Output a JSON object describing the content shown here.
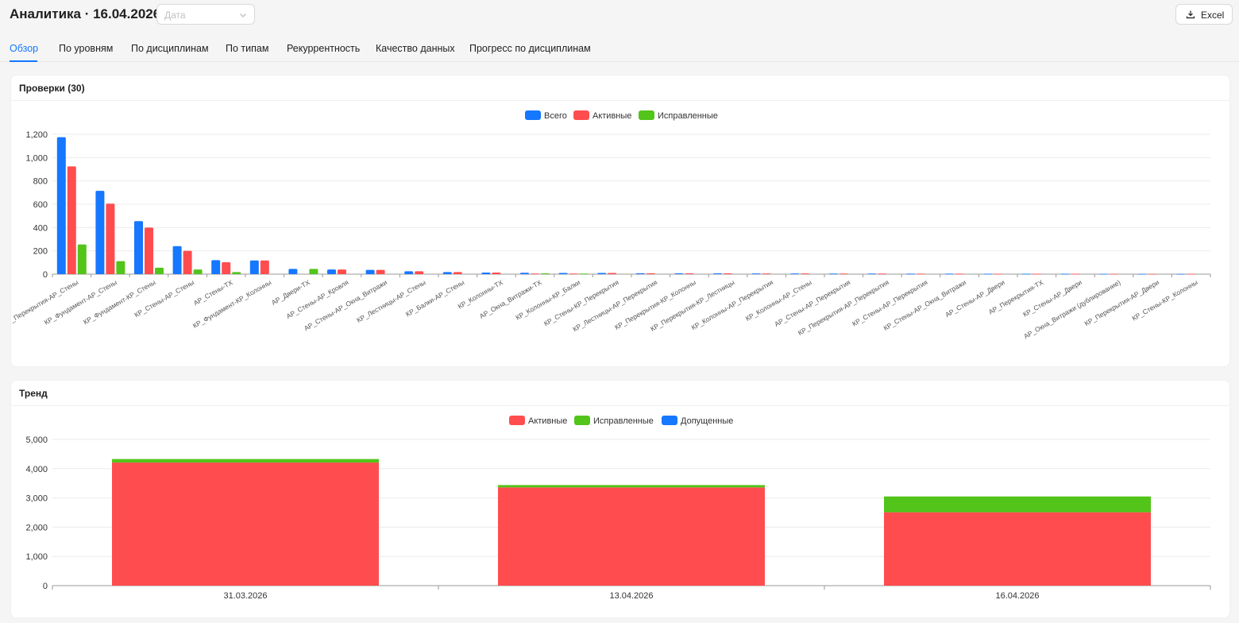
{
  "header": {
    "title": "Аналитика · 16.04.2026",
    "date_placeholder": "Дата",
    "excel_label": "Excel"
  },
  "tabs": [
    {
      "label": "Обзор",
      "active": true
    },
    {
      "label": "По уровням"
    },
    {
      "label": "По дисциплинам"
    },
    {
      "label": "По типам"
    },
    {
      "label": "Рекуррентность"
    },
    {
      "label": "Качество данных"
    },
    {
      "label": "Прогресс по дисциплинам"
    }
  ],
  "colors": {
    "blue": "#1677ff",
    "red": "#ff4d4f",
    "green": "#52c41a"
  },
  "checks_card": {
    "title": "Проверки (30)"
  },
  "trend_card": {
    "title": "Тренд"
  },
  "chart_data": [
    {
      "type": "bar",
      "title": "",
      "legend_position": "top-center",
      "grid": true,
      "ylim": [
        0,
        1200
      ],
      "yticks": [
        0,
        200,
        400,
        600,
        800,
        1000,
        1200
      ],
      "ytick_labels": [
        "0",
        "200",
        "400",
        "600",
        "800",
        "1,000",
        "1,200"
      ],
      "categories": [
        "КР_Перекрытия-АР_Стены",
        "КР_Фундамент-АР_Стены",
        "КР_Фундамент-КР_Стены",
        "КР_Стены-АР_Стены",
        "АР_Стены-ТХ",
        "КР_Фундамент-КР_Колонны",
        "АР_Двери-ТХ",
        "АР_Стены-АР_Кровля",
        "АР_Стены-АР_Окна_Витражи",
        "КР_Лестницы-АР_Стены",
        "КР_Балки-АР_Стены",
        "КР_Колонны-ТХ",
        "АР_Окна_Витражи-ТХ",
        "КР_Колонны-КР_Балки",
        "КР_Стены-КР_Перекрытия",
        "КР_Лестницы-АР_Перекрытия",
        "КР_Перекрытия-КР_Колонны",
        "КР_Перекрытия-КР_Лестницы",
        "КР_Колонны-АР_Перекрытия",
        "КР_Колонны-АР_Стены",
        "АР_Стены-АР_Перекрытия",
        "КР_Перекрытия-АР_Перекрытия",
        "КР_Стены-АР_Перекрытия",
        "КР_Стены-АР_Окна_Витражи",
        "АР_Стены-АР_Двери",
        "АР_Перекрытия-ТХ",
        "КР_Стены-АР_Двери",
        "АР_Окна_Витражи (дублирование)",
        "КР_Перекрытия-АР_Двери",
        "КР_Стены-КР_Колонны"
      ],
      "series": [
        {
          "name": "Всего",
          "color": "#1677ff",
          "values": [
            1175,
            715,
            455,
            240,
            120,
            118,
            45,
            40,
            37,
            25,
            18,
            14,
            12,
            10,
            10,
            8,
            7,
            7,
            6,
            6,
            5,
            5,
            4,
            4,
            3,
            3,
            3,
            2,
            2,
            2
          ]
        },
        {
          "name": "Активные",
          "color": "#ff4d4f",
          "values": [
            925,
            605,
            400,
            200,
            102,
            118,
            0,
            40,
            37,
            25,
            18,
            14,
            5,
            5,
            10,
            8,
            7,
            7,
            6,
            6,
            5,
            5,
            4,
            4,
            3,
            3,
            3,
            2,
            2,
            2
          ]
        },
        {
          "name": "Исправленные",
          "color": "#52c41a",
          "values": [
            255,
            112,
            55,
            40,
            18,
            0,
            45,
            0,
            0,
            0,
            0,
            0,
            7,
            5,
            0,
            0,
            0,
            0,
            0,
            0,
            0,
            0,
            0,
            0,
            0,
            0,
            0,
            0,
            0,
            0
          ]
        }
      ]
    },
    {
      "type": "bar",
      "stacked": true,
      "title": "",
      "legend_position": "top-center",
      "grid": true,
      "ylim": [
        0,
        5000
      ],
      "yticks": [
        0,
        1000,
        2000,
        3000,
        4000,
        5000
      ],
      "ytick_labels": [
        "0",
        "1,000",
        "2,000",
        "3,000",
        "4,000",
        "5,000"
      ],
      "categories": [
        "31.03.2026",
        "13.04.2026",
        "16.04.2026"
      ],
      "series": [
        {
          "name": "Активные",
          "color": "#ff4d4f",
          "values": [
            4210,
            3360,
            2510
          ]
        },
        {
          "name": "Исправленные",
          "color": "#52c41a",
          "values": [
            120,
            80,
            540
          ]
        },
        {
          "name": "Допущенные",
          "color": "#1677ff",
          "values": [
            0,
            0,
            0
          ]
        }
      ]
    }
  ]
}
